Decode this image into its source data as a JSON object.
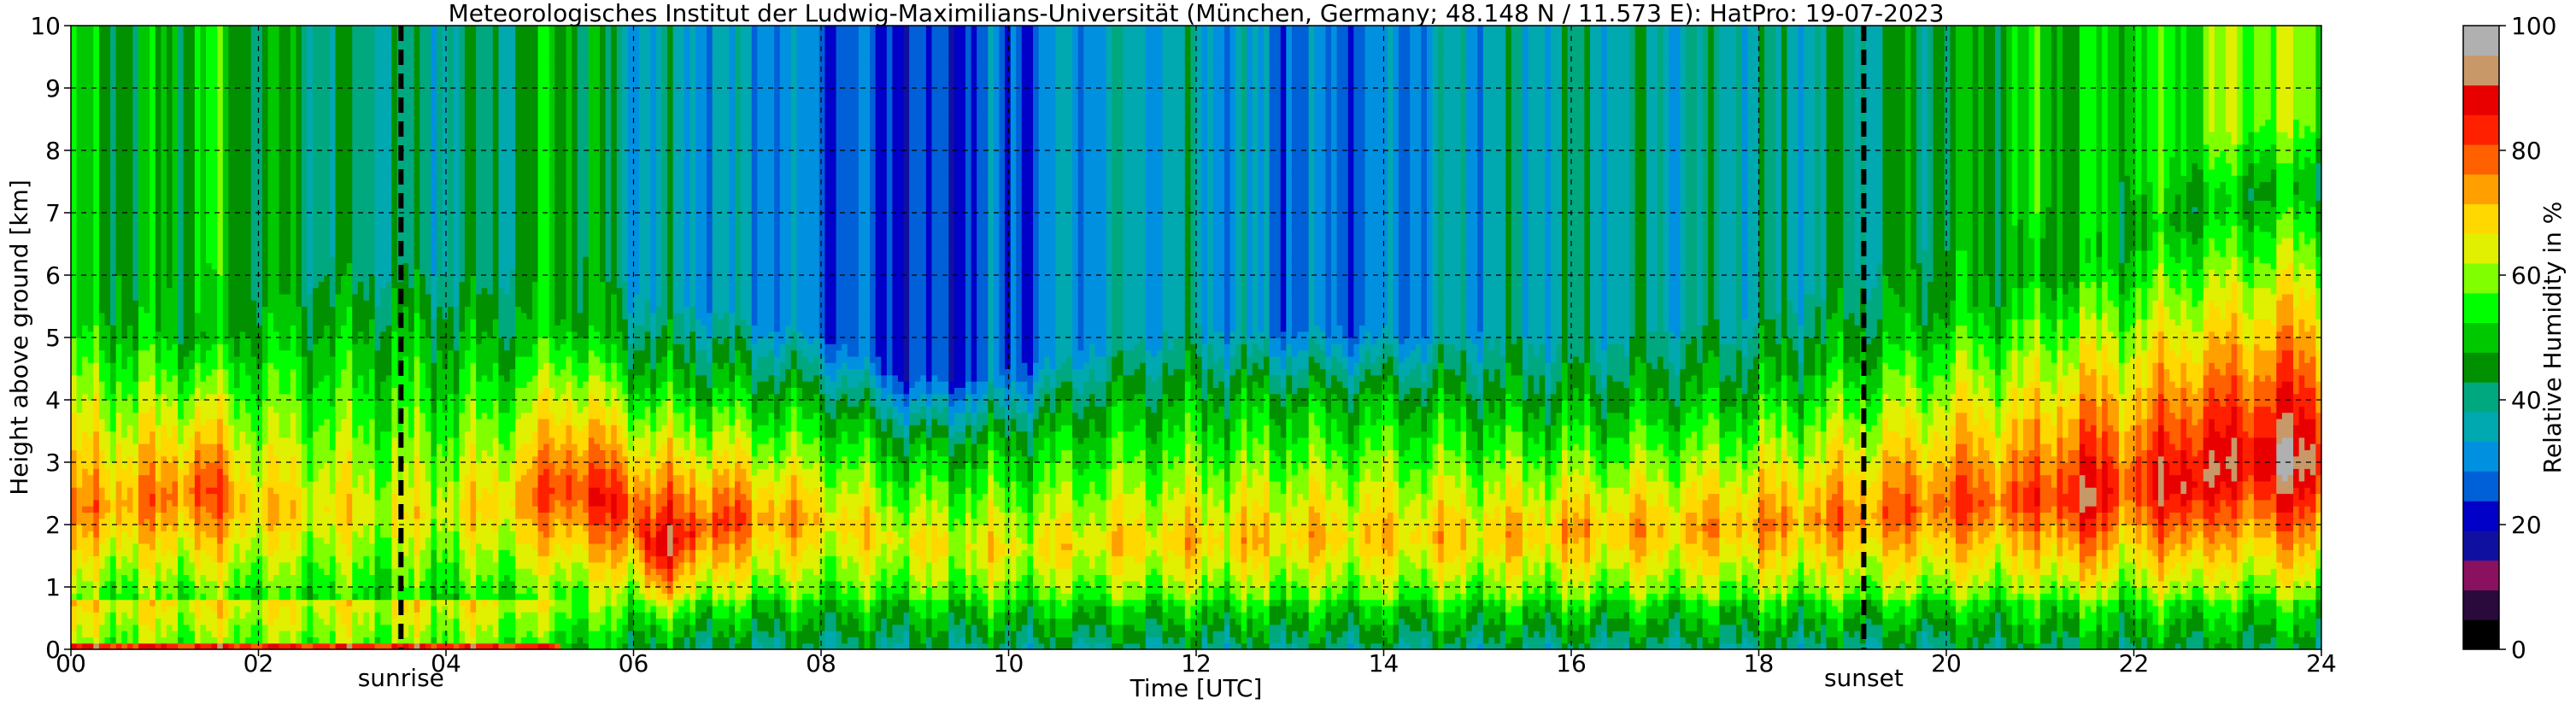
{
  "chart_data": {
    "type": "heatmap",
    "title": "Meteorologisches Institut der Ludwig-Maximilians-Universität (München, Germany; 48.148 N / 11.573 E):    HatPro: 19-07-2023",
    "xlabel": "Time [UTC]",
    "ylabel": "Height above ground [km]",
    "xlim": [
      0,
      24
    ],
    "ylim": [
      0,
      10
    ],
    "x_ticks": [
      0,
      2,
      4,
      6,
      8,
      10,
      12,
      14,
      16,
      18,
      20,
      22,
      24
    ],
    "x_tick_labels": [
      "00",
      "02",
      "04",
      "06",
      "08",
      "10",
      "12",
      "14",
      "16",
      "18",
      "20",
      "22",
      "24"
    ],
    "y_ticks": [
      0,
      1,
      2,
      3,
      4,
      5,
      6,
      7,
      8,
      9,
      10
    ],
    "y_tick_labels": [
      "0",
      "1",
      "2",
      "3",
      "4",
      "5",
      "6",
      "7",
      "8",
      "9",
      "10"
    ],
    "grid": true,
    "annotations": [
      {
        "label": "sunrise",
        "x": 3.52
      },
      {
        "label": "sunset",
        "x": 19.12
      }
    ],
    "colorbar": {
      "label": "Relative Humidity in %",
      "range": [
        0,
        100
      ],
      "ticks": [
        0,
        20,
        40,
        60,
        80,
        100
      ],
      "tick_labels": [
        "0",
        "20",
        "40",
        "60",
        "80",
        "100"
      ],
      "palette": [
        "#000000",
        "#2a0a3c",
        "#8a1060",
        "#1010a0",
        "#0000c8",
        "#0060d8",
        "#0090e0",
        "#00a8b0",
        "#00a880",
        "#009000",
        "#00c800",
        "#00ff00",
        "#80ff00",
        "#e0f000",
        "#ffd800",
        "#ffa000",
        "#ff6000",
        "#ff2000",
        "#e80000",
        "#c89868",
        "#b0b0b0"
      ]
    },
    "moisture_profile_midpoint_km": {
      "times": [
        0,
        1,
        1.4,
        2,
        3,
        3.52,
        4.5,
        5.3,
        6,
        6.2,
        7,
        8,
        9,
        10,
        11,
        12,
        13,
        14,
        15,
        16,
        17,
        18,
        19,
        20,
        21,
        21.4,
        22,
        22.6,
        23,
        23.6,
        24
      ],
      "values": [
        2.2,
        2.4,
        2.6,
        2.2,
        2.2,
        2.1,
        2.3,
        2.6,
        2.2,
        1.6,
        2.1,
        2.1,
        1.7,
        1.6,
        1.7,
        1.7,
        1.8,
        1.8,
        1.8,
        1.9,
        1.9,
        2.0,
        2.1,
        2.3,
        2.4,
        2.4,
        2.6,
        2.6,
        3.0,
        3.0,
        3.0
      ]
    },
    "moisture_profile_peak_percent": {
      "times": [
        0,
        1,
        1.4,
        2,
        3,
        3.52,
        4.5,
        5.3,
        6,
        6.2,
        7,
        8,
        9,
        10,
        11,
        12,
        13,
        14,
        15,
        16,
        17,
        18,
        19,
        20,
        21,
        21.4,
        22,
        22.6,
        23,
        23.6,
        24
      ],
      "values": [
        74,
        76,
        82,
        70,
        66,
        64,
        68,
        84,
        84,
        88,
        80,
        70,
        66,
        66,
        68,
        70,
        70,
        70,
        70,
        72,
        72,
        74,
        76,
        80,
        80,
        90,
        82,
        92,
        88,
        94,
        92
      ]
    },
    "moisture_profile_top_km": {
      "times": [
        0,
        1,
        1.4,
        2,
        3,
        3.52,
        4.5,
        5.3,
        6,
        6.2,
        7,
        8,
        9,
        10,
        11,
        12,
        13,
        14,
        15,
        16,
        17,
        18,
        19,
        20,
        21,
        21.4,
        22,
        22.6,
        23,
        23.6,
        24
      ],
      "values": [
        5.5,
        5.2,
        5.0,
        5.2,
        5.1,
        5.0,
        4.8,
        5.5,
        4.6,
        4.4,
        4.3,
        3.9,
        3.2,
        3.3,
        3.8,
        4.0,
        4.0,
        4.0,
        3.9,
        3.8,
        4.0,
        4.2,
        4.8,
        5.5,
        6.0,
        6.2,
        6.6,
        7.0,
        7.2,
        7.4,
        7.5
      ]
    },
    "upper_air_percent": {
      "times": [
        0,
        1,
        1.4,
        2,
        3,
        3.52,
        4.5,
        5.3,
        6,
        6.2,
        7,
        8,
        9,
        10,
        11,
        12,
        13,
        14,
        15,
        16,
        17,
        18,
        19,
        20,
        21,
        21.4,
        22,
        22.6,
        23,
        23.6,
        24
      ],
      "values": [
        48,
        46,
        52,
        45,
        40,
        40,
        40,
        50,
        36,
        36,
        34,
        28,
        22,
        26,
        34,
        36,
        28,
        28,
        36,
        38,
        38,
        38,
        40,
        45,
        50,
        50,
        52,
        55,
        60,
        60,
        60
      ]
    },
    "surface_layer_percent": {
      "times": [
        0,
        1,
        1.4,
        2,
        3,
        3.52,
        4.5,
        5.3,
        6,
        6.2,
        7,
        8,
        9,
        10,
        11,
        12,
        13,
        14,
        15,
        16,
        17,
        18,
        19,
        20,
        21,
        21.4,
        22,
        22.6,
        23,
        23.6,
        24
      ],
      "values": [
        82,
        82,
        82,
        82,
        82,
        82,
        82,
        70,
        60,
        55,
        50,
        45,
        40,
        40,
        40,
        38,
        38,
        38,
        40,
        40,
        42,
        42,
        45,
        50,
        55,
        55,
        55,
        55,
        55,
        55,
        55
      ]
    }
  }
}
